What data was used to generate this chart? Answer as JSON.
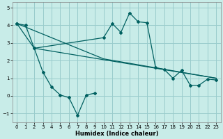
{
  "xlabel": "Humidex (Indice chaleur)",
  "background_color": "#c8ece8",
  "grid_color": "#99cccc",
  "line_color": "#006060",
  "xlim": [
    -0.5,
    23.5
  ],
  "ylim": [
    -1.5,
    5.3
  ],
  "yticks": [
    -1,
    0,
    1,
    2,
    3,
    4,
    5
  ],
  "xticks": [
    0,
    1,
    2,
    3,
    4,
    5,
    6,
    7,
    8,
    9,
    10,
    11,
    12,
    13,
    14,
    15,
    16,
    17,
    18,
    19,
    20,
    21,
    22,
    23
  ],
  "line1_x": [
    0,
    1,
    2,
    10,
    11,
    12,
    13,
    14,
    15,
    16,
    17,
    18,
    19,
    20,
    21,
    22,
    23
  ],
  "line1_y": [
    4.1,
    4.0,
    2.7,
    3.3,
    4.1,
    3.6,
    4.7,
    4.2,
    4.15,
    1.6,
    1.5,
    1.0,
    1.45,
    0.6,
    0.6,
    0.95,
    0.9
  ],
  "line2_x": [
    0,
    10,
    23
  ],
  "line2_y": [
    4.1,
    2.1,
    1.0
  ],
  "line3_x": [
    0,
    2,
    3,
    4,
    5,
    6,
    7,
    8,
    9
  ],
  "line3_y": [
    4.1,
    2.7,
    1.35,
    0.5,
    0.05,
    -0.1,
    -1.1,
    0.05,
    0.15
  ],
  "line4_x": [
    2,
    23
  ],
  "line4_y": [
    2.7,
    1.0
  ]
}
